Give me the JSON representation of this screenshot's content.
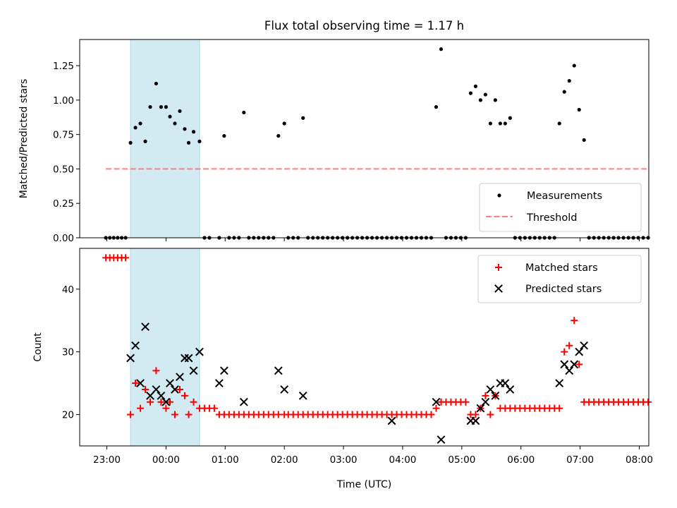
{
  "chart_data": [
    {
      "type": "scatter",
      "title": "Flux total observing time = 1.17 h",
      "xlabel": "",
      "ylabel": "Matched/Predicted stars",
      "ylim": [
        0,
        1.44
      ],
      "yticks": [
        "0.00",
        "0.25",
        "0.50",
        "0.75",
        "1.00",
        "1.25"
      ],
      "highlight_span": [
        "23:24",
        "00:34"
      ],
      "highlight_color": "#add8e6",
      "legend_position": "lower-right",
      "series": [
        {
          "name": "Measurements",
          "color": "#000000",
          "marker": "dot",
          "points": [
            [
              "22:59",
              0
            ],
            [
              "23:03",
              0
            ],
            [
              "23:07",
              0
            ],
            [
              "23:11",
              0
            ],
            [
              "23:15",
              0
            ],
            [
              "23:19",
              0
            ],
            [
              "23:24",
              0.69
            ],
            [
              "23:29",
              0.8
            ],
            [
              "23:34",
              0.83
            ],
            [
              "23:39",
              0.7
            ],
            [
              "23:44",
              0.95
            ],
            [
              "23:50",
              1.12
            ],
            [
              "23:55",
              0.95
            ],
            [
              "00:00",
              0.95
            ],
            [
              "00:04",
              0.88
            ],
            [
              "00:09",
              0.83
            ],
            [
              "00:14",
              0.92
            ],
            [
              "00:19",
              0.79
            ],
            [
              "00:23",
              0.69
            ],
            [
              "00:28",
              0.77
            ],
            [
              "00:34",
              0.7
            ],
            [
              "00:39",
              0
            ],
            [
              "00:44",
              0
            ],
            [
              "00:54",
              0
            ],
            [
              "00:59",
              0.74
            ],
            [
              "01:04",
              0
            ],
            [
              "01:09",
              0
            ],
            [
              "01:14",
              0
            ],
            [
              "01:19",
              0.91
            ],
            [
              "01:24",
              0
            ],
            [
              "01:29",
              0
            ],
            [
              "01:34",
              0
            ],
            [
              "01:39",
              0
            ],
            [
              "01:44",
              0
            ],
            [
              "01:49",
              0
            ],
            [
              "01:54",
              0.74
            ],
            [
              "02:00",
              0.83
            ],
            [
              "02:04",
              0
            ],
            [
              "02:09",
              0
            ],
            [
              "02:14",
              0
            ],
            [
              "02:19",
              0.87
            ],
            [
              "02:24",
              0
            ],
            [
              "02:29",
              0
            ],
            [
              "02:34",
              0
            ],
            [
              "02:39",
              0
            ],
            [
              "02:44",
              0
            ],
            [
              "02:49",
              0
            ],
            [
              "02:54",
              0
            ],
            [
              "02:59",
              0
            ],
            [
              "03:04",
              0
            ],
            [
              "03:09",
              0
            ],
            [
              "03:14",
              0
            ],
            [
              "03:19",
              0
            ],
            [
              "03:24",
              0
            ],
            [
              "03:29",
              0
            ],
            [
              "03:34",
              0
            ],
            [
              "03:39",
              0
            ],
            [
              "03:44",
              0
            ],
            [
              "03:49",
              0
            ],
            [
              "03:54",
              0
            ],
            [
              "03:59",
              0
            ],
            [
              "04:04",
              0
            ],
            [
              "04:09",
              0
            ],
            [
              "04:14",
              0
            ],
            [
              "04:19",
              0
            ],
            [
              "04:24",
              0
            ],
            [
              "04:29",
              0
            ],
            [
              "04:34",
              0.95
            ],
            [
              "04:39",
              1.37
            ],
            [
              "04:44",
              0
            ],
            [
              "04:49",
              0
            ],
            [
              "04:54",
              0
            ],
            [
              "04:59",
              0
            ],
            [
              "05:04",
              0
            ],
            [
              "05:09",
              1.05
            ],
            [
              "05:14",
              1.1
            ],
            [
              "05:19",
              1.0
            ],
            [
              "05:24",
              1.04
            ],
            [
              "05:29",
              0.83
            ],
            [
              "05:34",
              1.0
            ],
            [
              "05:39",
              0.83
            ],
            [
              "05:44",
              0.83
            ],
            [
              "05:49",
              0.87
            ],
            [
              "05:54",
              0
            ],
            [
              "05:59",
              0
            ],
            [
              "06:04",
              0
            ],
            [
              "06:09",
              0
            ],
            [
              "06:14",
              0
            ],
            [
              "06:19",
              0
            ],
            [
              "06:24",
              0
            ],
            [
              "06:29",
              0
            ],
            [
              "06:34",
              0
            ],
            [
              "06:39",
              0.83
            ],
            [
              "06:44",
              1.06
            ],
            [
              "06:49",
              1.14
            ],
            [
              "06:54",
              1.25
            ],
            [
              "06:59",
              0.93
            ],
            [
              "07:04",
              0.71
            ],
            [
              "07:09",
              0
            ],
            [
              "07:14",
              0
            ],
            [
              "07:19",
              0
            ],
            [
              "07:24",
              0
            ],
            [
              "07:29",
              0
            ],
            [
              "07:34",
              0
            ],
            [
              "07:39",
              0
            ],
            [
              "07:44",
              0
            ],
            [
              "07:49",
              0
            ],
            [
              "07:54",
              0
            ],
            [
              "07:59",
              0
            ],
            [
              "08:04",
              0
            ],
            [
              "08:09",
              0
            ]
          ]
        },
        {
          "name": "Threshold",
          "color": "#ff7f7f",
          "style": "dashed",
          "points": [
            [
              "22:59",
              0.5
            ],
            [
              "08:09",
              0.5
            ]
          ]
        }
      ]
    },
    {
      "type": "scatter",
      "title": "",
      "xlabel": "Time (UTC)",
      "ylabel": "Count",
      "ylim": [
        15,
        46.5
      ],
      "yticks": [
        "20",
        "30",
        "40"
      ],
      "xticks": [
        "23:00",
        "00:00",
        "01:00",
        "02:00",
        "03:00",
        "04:00",
        "05:00",
        "06:00",
        "07:00",
        "08:00"
      ],
      "highlight_span": [
        "23:24",
        "00:34"
      ],
      "highlight_color": "#add8e6",
      "legend_position": "upper-right",
      "series": [
        {
          "name": "Matched stars",
          "color": "#ff0000",
          "marker": "plus",
          "points": [
            [
              "22:59",
              45
            ],
            [
              "23:03",
              45
            ],
            [
              "23:07",
              45
            ],
            [
              "23:11",
              45
            ],
            [
              "23:15",
              45
            ],
            [
              "23:19",
              45
            ],
            [
              "23:24",
              20
            ],
            [
              "23:29",
              25
            ],
            [
              "23:34",
              21
            ],
            [
              "23:39",
              24
            ],
            [
              "23:44",
              22
            ],
            [
              "23:50",
              27
            ],
            [
              "23:55",
              22
            ],
            [
              "00:00",
              21
            ],
            [
              "00:04",
              22
            ],
            [
              "00:09",
              20
            ],
            [
              "00:14",
              24
            ],
            [
              "00:19",
              23
            ],
            [
              "00:23",
              20
            ],
            [
              "00:28",
              22
            ],
            [
              "00:34",
              21
            ],
            [
              "00:39",
              21
            ],
            [
              "00:44",
              21
            ],
            [
              "00:49",
              21
            ],
            [
              "00:54",
              20
            ],
            [
              "00:59",
              20
            ],
            [
              "01:04",
              20
            ],
            [
              "01:09",
              20
            ],
            [
              "01:14",
              20
            ],
            [
              "01:19",
              20
            ],
            [
              "01:24",
              20
            ],
            [
              "01:29",
              20
            ],
            [
              "01:34",
              20
            ],
            [
              "01:39",
              20
            ],
            [
              "01:44",
              20
            ],
            [
              "01:49",
              20
            ],
            [
              "01:54",
              20
            ],
            [
              "02:00",
              20
            ],
            [
              "02:04",
              20
            ],
            [
              "02:09",
              20
            ],
            [
              "02:14",
              20
            ],
            [
              "02:19",
              20
            ],
            [
              "02:24",
              20
            ],
            [
              "02:29",
              20
            ],
            [
              "02:34",
              20
            ],
            [
              "02:39",
              20
            ],
            [
              "02:44",
              20
            ],
            [
              "02:49",
              20
            ],
            [
              "02:54",
              20
            ],
            [
              "02:59",
              20
            ],
            [
              "03:04",
              20
            ],
            [
              "03:09",
              20
            ],
            [
              "03:14",
              20
            ],
            [
              "03:19",
              20
            ],
            [
              "03:24",
              20
            ],
            [
              "03:29",
              20
            ],
            [
              "03:34",
              20
            ],
            [
              "03:39",
              20
            ],
            [
              "03:44",
              20
            ],
            [
              "03:49",
              20
            ],
            [
              "03:54",
              20
            ],
            [
              "03:59",
              20
            ],
            [
              "04:04",
              20
            ],
            [
              "04:09",
              20
            ],
            [
              "04:14",
              20
            ],
            [
              "04:19",
              20
            ],
            [
              "04:24",
              20
            ],
            [
              "04:29",
              20
            ],
            [
              "04:34",
              21
            ],
            [
              "04:39",
              22
            ],
            [
              "04:44",
              22
            ],
            [
              "04:49",
              22
            ],
            [
              "04:54",
              22
            ],
            [
              "04:59",
              22
            ],
            [
              "05:04",
              22
            ],
            [
              "05:09",
              20
            ],
            [
              "05:14",
              20
            ],
            [
              "05:19",
              21
            ],
            [
              "05:24",
              23
            ],
            [
              "05:29",
              20
            ],
            [
              "05:34",
              23
            ],
            [
              "05:39",
              21
            ],
            [
              "05:44",
              21
            ],
            [
              "05:49",
              21
            ],
            [
              "05:54",
              21
            ],
            [
              "05:59",
              21
            ],
            [
              "06:04",
              21
            ],
            [
              "06:09",
              21
            ],
            [
              "06:14",
              21
            ],
            [
              "06:19",
              21
            ],
            [
              "06:24",
              21
            ],
            [
              "06:29",
              21
            ],
            [
              "06:34",
              21
            ],
            [
              "06:39",
              21
            ],
            [
              "06:44",
              30
            ],
            [
              "06:49",
              31
            ],
            [
              "06:54",
              35
            ],
            [
              "06:59",
              28
            ],
            [
              "07:04",
              22
            ],
            [
              "07:09",
              22
            ],
            [
              "07:14",
              22
            ],
            [
              "07:19",
              22
            ],
            [
              "07:24",
              22
            ],
            [
              "07:29",
              22
            ],
            [
              "07:34",
              22
            ],
            [
              "07:39",
              22
            ],
            [
              "07:44",
              22
            ],
            [
              "07:49",
              22
            ],
            [
              "07:54",
              22
            ],
            [
              "07:59",
              22
            ],
            [
              "08:04",
              22
            ],
            [
              "08:09",
              22
            ]
          ]
        },
        {
          "name": "Predicted stars",
          "color": "#000000",
          "marker": "x",
          "points": [
            [
              "23:24",
              29
            ],
            [
              "23:29",
              31
            ],
            [
              "23:34",
              25
            ],
            [
              "23:39",
              34
            ],
            [
              "23:44",
              23
            ],
            [
              "23:50",
              24
            ],
            [
              "23:55",
              23
            ],
            [
              "00:00",
              22
            ],
            [
              "00:04",
              25
            ],
            [
              "00:09",
              24
            ],
            [
              "00:14",
              26
            ],
            [
              "00:19",
              29
            ],
            [
              "00:23",
              29
            ],
            [
              "00:28",
              27
            ],
            [
              "00:34",
              30
            ],
            [
              "00:54",
              25
            ],
            [
              "00:59",
              27
            ],
            [
              "01:19",
              22
            ],
            [
              "01:54",
              27
            ],
            [
              "02:00",
              24
            ],
            [
              "02:19",
              23
            ],
            [
              "03:49",
              19
            ],
            [
              "04:34",
              22
            ],
            [
              "04:39",
              16
            ],
            [
              "05:09",
              19
            ],
            [
              "05:14",
              19
            ],
            [
              "05:19",
              21
            ],
            [
              "05:24",
              22
            ],
            [
              "05:29",
              24
            ],
            [
              "05:34",
              23
            ],
            [
              "05:39",
              25
            ],
            [
              "05:44",
              25
            ],
            [
              "05:49",
              24
            ],
            [
              "06:39",
              25
            ],
            [
              "06:44",
              28
            ],
            [
              "06:49",
              27
            ],
            [
              "06:54",
              28
            ],
            [
              "06:59",
              30
            ],
            [
              "07:04",
              31
            ]
          ]
        }
      ]
    }
  ]
}
